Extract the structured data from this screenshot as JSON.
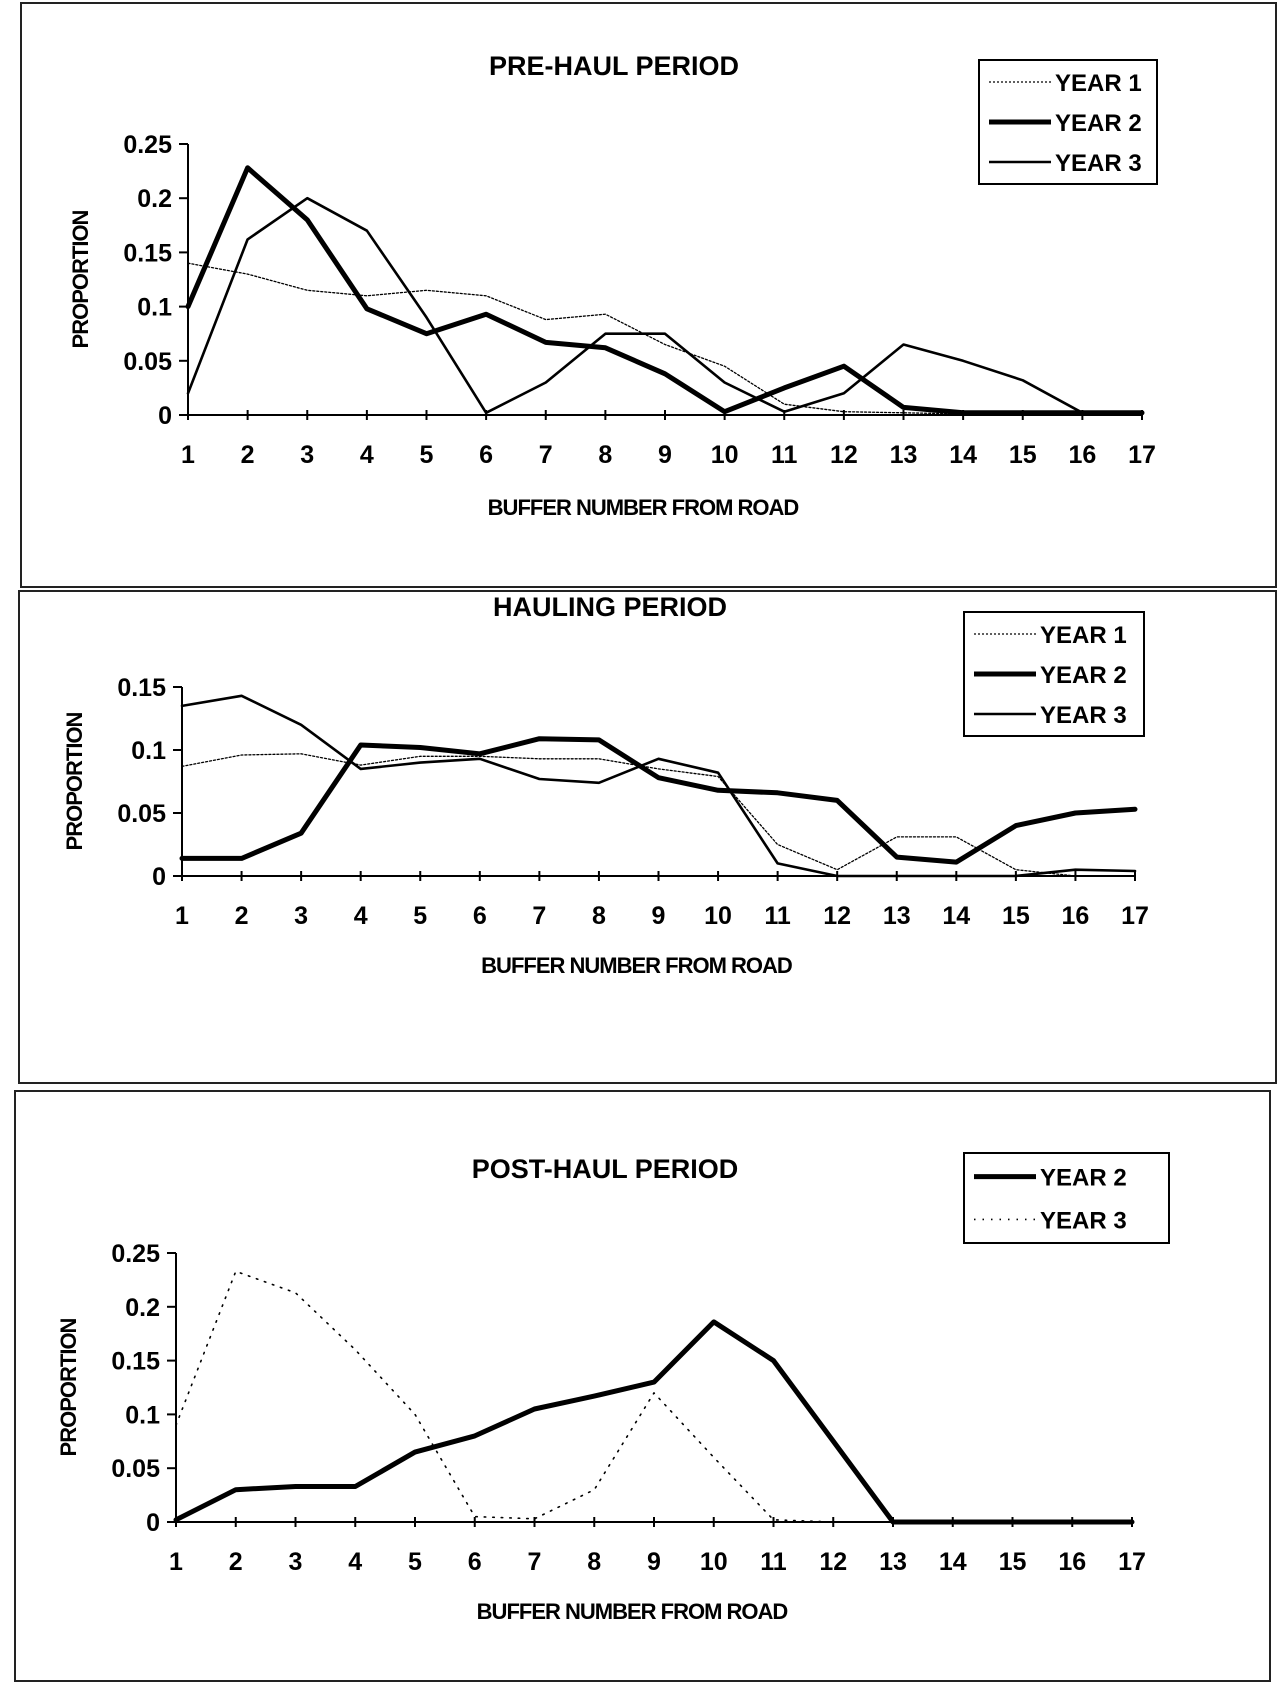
{
  "chart_data": [
    {
      "type": "line",
      "title": "PRE-HAUL PERIOD",
      "xlabel": "BUFFER NUMBER FROM ROAD",
      "ylabel": "PROPORTION",
      "x": [
        1,
        2,
        3,
        4,
        5,
        6,
        7,
        8,
        9,
        10,
        11,
        12,
        13,
        14,
        15,
        16,
        17
      ],
      "ylim": [
        0,
        0.25
      ],
      "yticks": [
        "0",
        "0.05",
        "0.1",
        "0.15",
        "0.2",
        "0.25"
      ],
      "legend_position": "top-right",
      "grid": false,
      "series": [
        {
          "name": "YEAR 1",
          "style": "thin-dotted",
          "values": [
            0.14,
            0.13,
            0.115,
            0.11,
            0.115,
            0.11,
            0.088,
            0.093,
            0.065,
            0.045,
            0.01,
            0.003,
            0.002,
            0.001,
            0.001,
            0.001,
            0.001
          ]
        },
        {
          "name": "YEAR 2",
          "style": "thick",
          "values": [
            0.1,
            0.228,
            0.18,
            0.098,
            0.075,
            0.093,
            0.067,
            0.062,
            0.038,
            0.003,
            0.025,
            0.045,
            0.007,
            0.002,
            0.002,
            0.002,
            0.002
          ]
        },
        {
          "name": "YEAR 3",
          "style": "medium",
          "values": [
            0.02,
            0.162,
            0.2,
            0.17,
            0.09,
            0.002,
            0.03,
            0.075,
            0.075,
            0.03,
            0.003,
            0.02,
            0.065,
            0.05,
            0.032,
            0.002,
            0.002
          ]
        }
      ]
    },
    {
      "type": "line",
      "title": "HAULING PERIOD",
      "xlabel": "BUFFER NUMBER FROM ROAD",
      "ylabel": "PROPORTION",
      "x": [
        1,
        2,
        3,
        4,
        5,
        6,
        7,
        8,
        9,
        10,
        11,
        12,
        13,
        14,
        15,
        16,
        17
      ],
      "ylim": [
        0,
        0.15
      ],
      "yticks": [
        "0",
        "0.05",
        "0.1",
        "0.15"
      ],
      "legend_position": "top-right",
      "grid": false,
      "series": [
        {
          "name": "YEAR 1",
          "style": "thin-dotted",
          "values": [
            0.087,
            0.096,
            0.097,
            0.088,
            0.095,
            0.095,
            0.093,
            0.093,
            0.085,
            0.079,
            0.025,
            0.005,
            0.031,
            0.031,
            0.005,
            0.0,
            0.0
          ]
        },
        {
          "name": "YEAR 2",
          "style": "thick",
          "values": [
            0.014,
            0.014,
            0.034,
            0.104,
            0.102,
            0.097,
            0.109,
            0.108,
            0.078,
            0.068,
            0.066,
            0.06,
            0.015,
            0.011,
            0.04,
            0.05,
            0.053
          ]
        },
        {
          "name": "YEAR 3",
          "style": "medium",
          "values": [
            0.135,
            0.143,
            0.12,
            0.085,
            0.09,
            0.093,
            0.077,
            0.074,
            0.093,
            0.082,
            0.01,
            0.0,
            0.0,
            0.0,
            0.0,
            0.005,
            0.004
          ]
        }
      ]
    },
    {
      "type": "line",
      "title": "POST-HAUL PERIOD",
      "xlabel": "BUFFER NUMBER FROM ROAD",
      "ylabel": "PROPORTION",
      "x": [
        1,
        2,
        3,
        4,
        5,
        6,
        7,
        8,
        9,
        10,
        11,
        12,
        13,
        14,
        15,
        16,
        17
      ],
      "ylim": [
        0,
        0.25
      ],
      "yticks": [
        "0",
        "0.05",
        "0.1",
        "0.15",
        "0.2",
        "0.25"
      ],
      "legend_position": "top-right",
      "grid": false,
      "series": [
        {
          "name": "YEAR 2",
          "style": "thick",
          "values": [
            0.002,
            0.03,
            0.033,
            0.033,
            0.065,
            0.08,
            0.105,
            0.117,
            0.13,
            0.186,
            0.15,
            0.075,
            0.0,
            0.0,
            0.0,
            0.0,
            0.0
          ]
        },
        {
          "name": "YEAR 3",
          "style": "dotted",
          "values": [
            0.09,
            0.233,
            0.213,
            0.16,
            0.1,
            0.005,
            0.003,
            0.03,
            0.12,
            0.06,
            0.002,
            0.0,
            0.0,
            0.0,
            0.0,
            0.0,
            0.0
          ]
        }
      ]
    }
  ]
}
